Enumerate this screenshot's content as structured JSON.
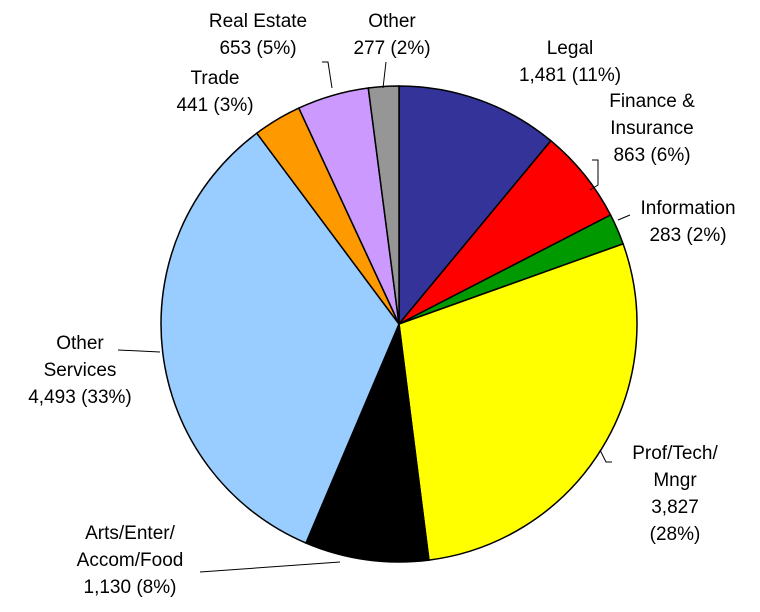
{
  "chart_data": {
    "type": "pie",
    "categories": [
      "Legal",
      "Finance &\nInsurance",
      "Information",
      "Prof/Tech/\nMngr",
      "Arts/Enter/\nAccom/Food",
      "Other\nServices",
      "Trade",
      "Real Estate",
      "Other"
    ],
    "values": [
      1481,
      863,
      283,
      3827,
      1130,
      4493,
      441,
      653,
      277
    ],
    "value_labels": [
      "1,481 (11%)",
      "863 (6%)",
      "283 (2%)",
      "3,827 (28%)",
      "1,130 (8%)",
      "4,493 (33%)",
      "441 (3%)",
      "653 (5%)",
      "277 (2%)"
    ],
    "colors": [
      "#333399",
      "#ff0000",
      "#009900",
      "#ffff00",
      "#000000",
      "#99ccff",
      "#ff9900",
      "#cc99ff",
      "#969696"
    ]
  }
}
